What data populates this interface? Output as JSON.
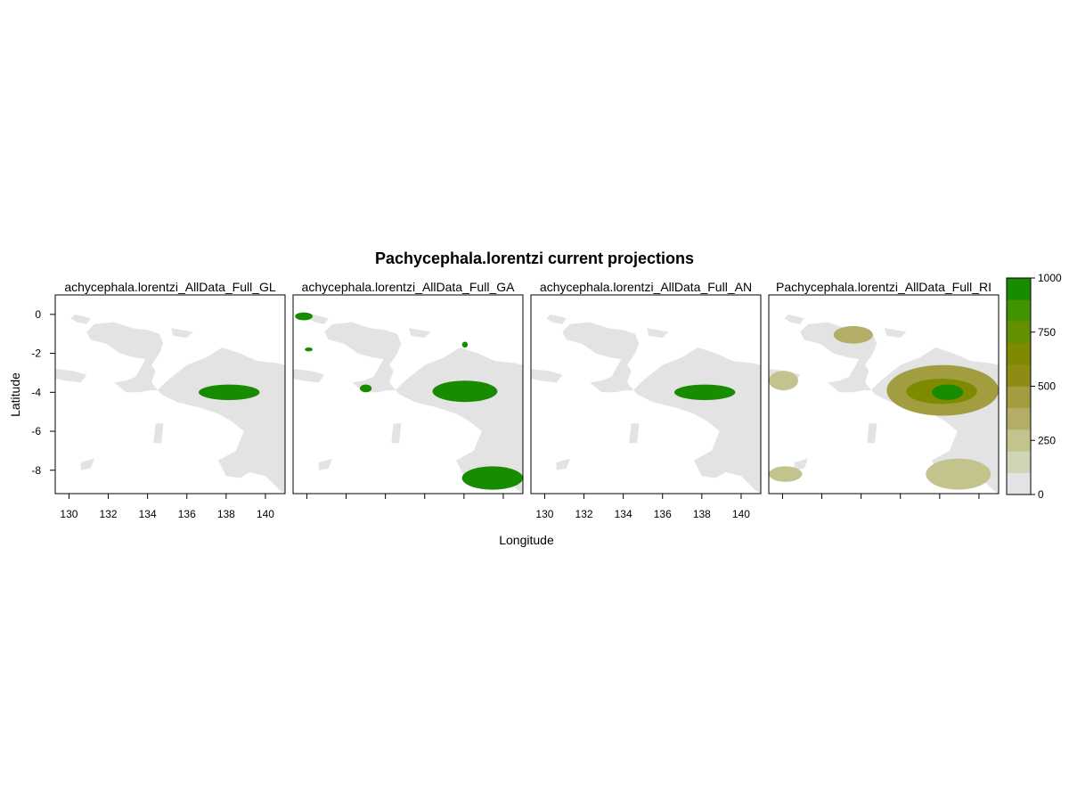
{
  "chart_data": {
    "type": "heatmap",
    "title": "Pachycephala.lorentzi current projections",
    "xlabel": "Longitude",
    "ylabel": "Latitude",
    "xlim": [
      129.3,
      141
    ],
    "ylim": [
      -9.2,
      1
    ],
    "x_ticks": [
      130,
      132,
      134,
      136,
      138,
      140
    ],
    "y_ticks": [
      0,
      -2,
      -4,
      -6,
      -8
    ],
    "panels": [
      {
        "title": "Pachycephala.lorentzi_AllData_Full_GLM",
        "shown_title": "achycephala.lorentzi_AllData_Full_GL",
        "show_x_ticks": true,
        "show_x_labels": true,
        "suitability": [
          {
            "lon": [
              136.6,
              139.7
            ],
            "lat": [
              -3.6,
              -4.4
            ],
            "value": 1000
          }
        ]
      },
      {
        "title": "Pachycephala.lorentzi_AllData_Full_GAM",
        "shown_title": "achycephala.lorentzi_AllData_Full_GA",
        "show_x_ticks": true,
        "show_x_labels": false,
        "suitability": [
          {
            "lon": [
              129.4,
              130.3
            ],
            "lat": [
              0.1,
              -0.3
            ],
            "value": 1000
          },
          {
            "lon": [
              129.9,
              130.3
            ],
            "lat": [
              -1.7,
              -1.9
            ],
            "value": 1000
          },
          {
            "lon": [
              132.7,
              133.3
            ],
            "lat": [
              -3.6,
              -4.0
            ],
            "value": 1000
          },
          {
            "lon": [
              137.9,
              138.2
            ],
            "lat": [
              -1.4,
              -1.7
            ],
            "value": 1000
          },
          {
            "lon": [
              136.4,
              139.7
            ],
            "lat": [
              -3.4,
              -4.5
            ],
            "value": 1000
          },
          {
            "lon": [
              137.9,
              141.0
            ],
            "lat": [
              -7.8,
              -9.0
            ],
            "value": 1000
          }
        ]
      },
      {
        "title": "Pachycephala.lorentzi_AllData_Full_ANN",
        "shown_title": "achycephala.lorentzi_AllData_Full_AN",
        "show_x_ticks": true,
        "show_x_labels": true,
        "suitability": [
          {
            "lon": [
              136.6,
              139.7
            ],
            "lat": [
              -3.6,
              -4.4
            ],
            "value": 1000
          }
        ]
      },
      {
        "title": "Pachycephala.lorentzi_AllData_Full_RF",
        "shown_title": "Pachycephala.lorentzi_AllData_Full_RI",
        "show_x_ticks": true,
        "show_x_labels": false,
        "suitability": [
          {
            "lon": [
              132.6,
              134.6
            ],
            "lat": [
              -0.6,
              -1.5
            ],
            "value": 300
          },
          {
            "lon": [
              129.3,
              130.8
            ],
            "lat": [
              -2.9,
              -3.9
            ],
            "value": 250
          },
          {
            "lon": [
              135.3,
              141.0
            ],
            "lat": [
              -2.6,
              -5.2
            ],
            "value": 450
          },
          {
            "lon": [
              136.3,
              139.9
            ],
            "lat": [
              -3.3,
              -4.6
            ],
            "value": 620
          },
          {
            "lon": [
              137.6,
              139.2
            ],
            "lat": [
              -3.6,
              -4.4
            ],
            "value": 900
          },
          {
            "lon": [
              137.3,
              140.6
            ],
            "lat": [
              -7.4,
              -9.0
            ],
            "value": 220
          },
          {
            "lon": [
              129.3,
              131.0
            ],
            "lat": [
              -7.8,
              -8.6
            ],
            "value": 230
          }
        ]
      }
    ],
    "colorbar": {
      "min": 0,
      "max": 1000,
      "ticks": [
        0,
        250,
        500,
        750,
        1000
      ],
      "colors": [
        "#e3e3e3",
        "#d2d4b6",
        "#c2c38d",
        "#b3ad68",
        "#a19d40",
        "#8e8c14",
        "#7e8a00",
        "#648f00",
        "#439200",
        "#178c00"
      ]
    },
    "land_color": "#e3e3e3"
  }
}
